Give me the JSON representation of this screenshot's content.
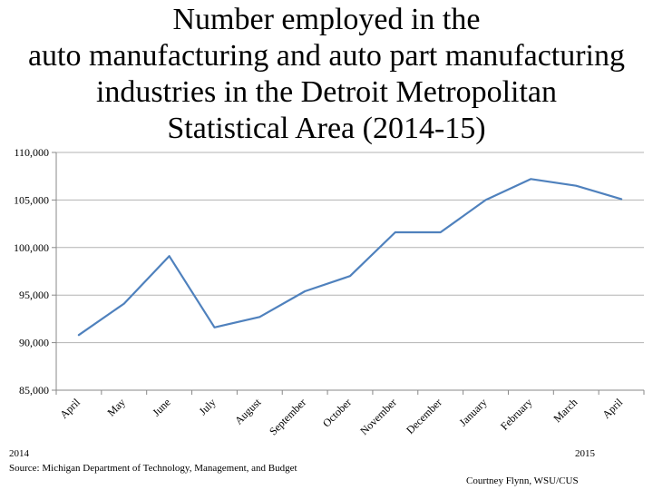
{
  "chart_data": {
    "type": "line",
    "title": "Number employed in the auto manufacturing and auto part manufacturing industries in the Detroit Metropolitan Statistical Area (2014-15)",
    "categories": [
      "April",
      "May",
      "June",
      "July",
      "August",
      "September",
      "October",
      "November",
      "December",
      "January",
      "February",
      "March",
      "April"
    ],
    "series": [
      {
        "values": [
          90800,
          94100,
          99100,
          91600,
          92700,
          95400,
          97000,
          101600,
          101600,
          105000,
          107200,
          106500,
          105100
        ]
      }
    ],
    "ylim": [
      85000,
      110000
    ],
    "yticks": [
      85000,
      90000,
      95000,
      100000,
      105000,
      110000
    ],
    "ytick_labels": [
      "85,000",
      "90,000",
      "95,000",
      "100,000",
      "105,000",
      "110,000"
    ],
    "grid": true,
    "line_color": "#4f81bd"
  },
  "footer": {
    "year_left": "2014",
    "source": "Source: Michigan Department of Technology, Management, and Budget",
    "year_right": "2015",
    "credit": "Courtney Flynn, WSU/CUS"
  }
}
